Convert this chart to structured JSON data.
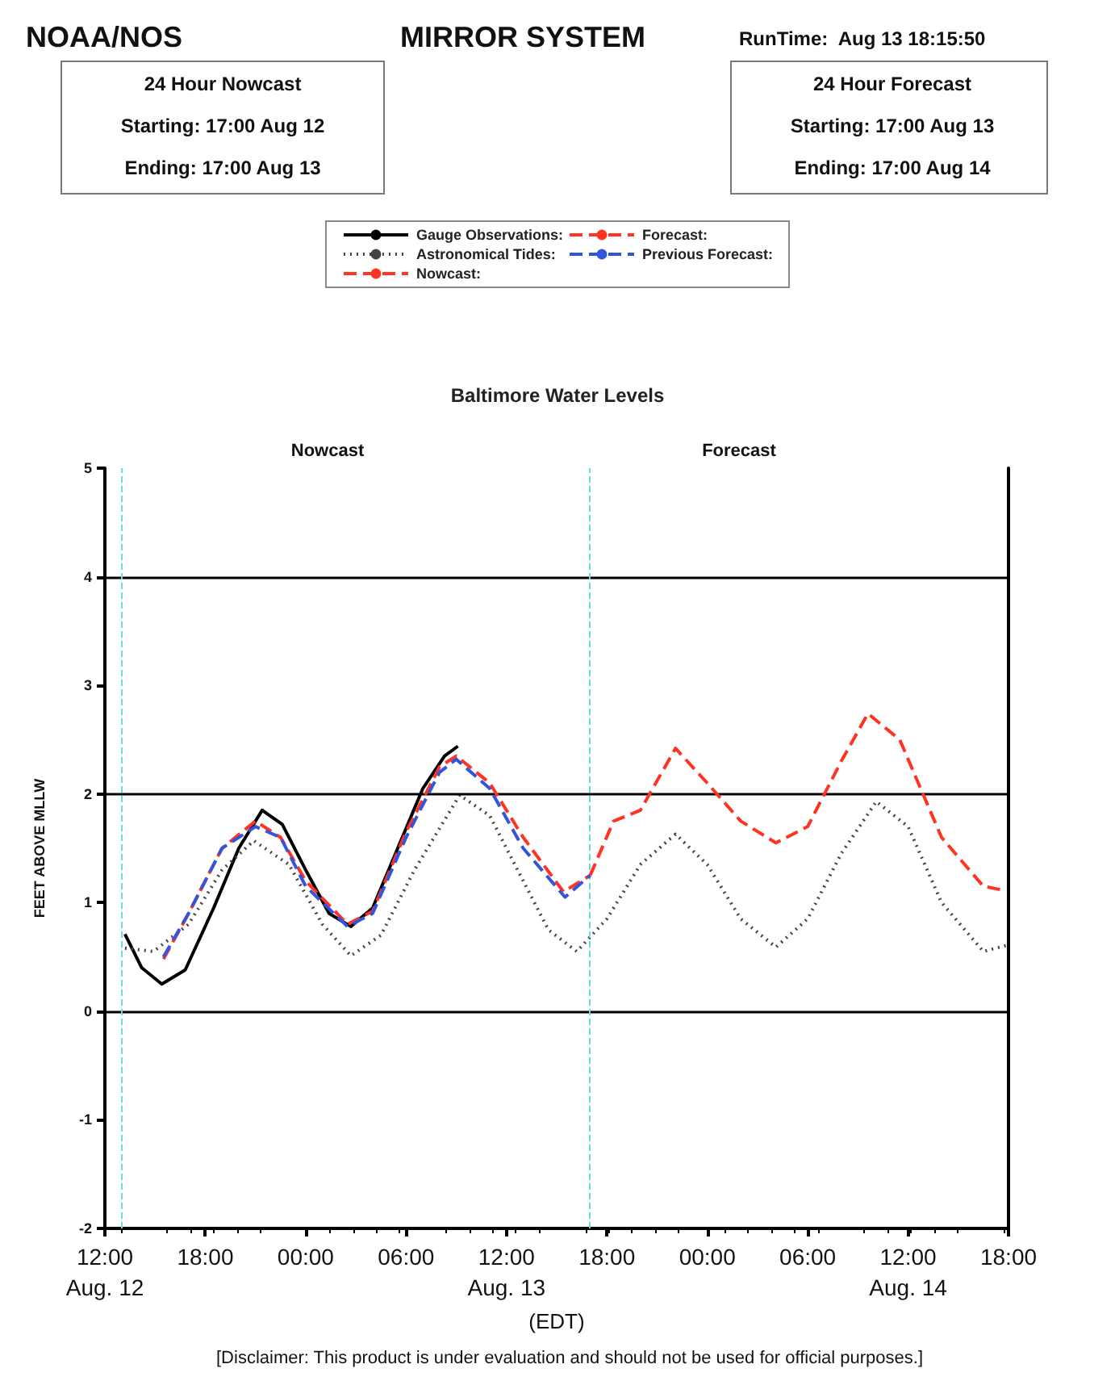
{
  "chart_data": {
    "type": "line",
    "title": "Baltimore Water Levels",
    "xlabel": "(EDT)",
    "ylabel": "FEET ABOVE MLLW",
    "annotations": [
      "NOAA/NOS",
      "MIRROR SYSTEM",
      "RunTime:  Aug 13 18:15:50",
      "24 Hour Nowcast",
      "Starting: 17:00 Aug 12",
      "Ending: 17:00 Aug 13",
      "24 Hour Forecast",
      "Starting: 17:00 Aug 13",
      "Ending: 17:00 Aug 14",
      "Nowcast",
      "Forecast",
      "[Disclaimer: This product is under evaluation and should not be used for official purposes.]"
    ],
    "xlim": [
      "--08-12T12:00",
      "--08-14T18:00"
    ],
    "ylim": [
      -2,
      5
    ],
    "xticks": [
      {
        "value": "--08-12T12:00",
        "label": "12:00\nAug. 12"
      },
      {
        "value": "--08-12T18:00",
        "label": "18:00"
      },
      {
        "value": "--08-13T00:00",
        "label": "00:00"
      },
      {
        "value": "--08-13T06:00",
        "label": "06:00"
      },
      {
        "value": "--08-13T12:00",
        "label": "12:00\nAug. 13"
      },
      {
        "value": "--08-13T18:00",
        "label": "18:00"
      },
      {
        "value": "--08-14T00:00",
        "label": "00:00"
      },
      {
        "value": "--08-14T06:00",
        "label": "06:00"
      },
      {
        "value": "--08-14T12:00",
        "label": "12:00\nAug. 14"
      },
      {
        "value": "--08-14T18:00",
        "label": "18:00"
      }
    ],
    "yticks": [
      -2,
      -1,
      0,
      1,
      2,
      3,
      4,
      5
    ],
    "grid": false,
    "legend": "top",
    "marker": "none",
    "ref_lines": [
      {
        "axis": "y",
        "value": 0,
        "color": "#000000",
        "line_style": "solid"
      },
      {
        "axis": "y",
        "value": 2,
        "color": "#000000",
        "line_style": "solid"
      },
      {
        "axis": "y",
        "value": 4,
        "color": "#000000",
        "line_style": "solid"
      },
      {
        "axis": "x",
        "value": "--08-12T13:00",
        "color": "#66dddd",
        "line_style": "dashed"
      },
      {
        "axis": "x",
        "value": "--08-13T17:00",
        "color": "#66dddd",
        "line_style": "dashed"
      }
    ],
    "series": [
      {
        "name": "Gauge Observations:",
        "color": "#000000",
        "line_style": "solid",
        "x": [
          "--08-12T13:12",
          "--08-12T14:12",
          "--08-12T15:24",
          "--08-12T16:48",
          "--08-12T18:30",
          "--08-12T20:00",
          "--08-12T21:24",
          "--08-12T22:36",
          "--08-13T00:00",
          "--08-13T01:24",
          "--08-13T02:42",
          "--08-13T04:00",
          "--08-13T05:30",
          "--08-13T07:00",
          "--08-13T08:18",
          "--08-13T09:06"
        ],
        "values": [
          0.71,
          0.4,
          0.25,
          0.38,
          0.95,
          1.5,
          1.85,
          1.72,
          1.3,
          0.9,
          0.78,
          0.95,
          1.5,
          2.05,
          2.35,
          2.44
        ]
      },
      {
        "name": "Astronomical Tides:",
        "color": "#444444",
        "line_style": "dotted",
        "x": [
          "--08-12T13:12",
          "--08-12T14:54",
          "--08-12T17:00",
          "--08-12T19:00",
          "--08-12T20:54",
          "--08-12T23:00",
          "--08-13T01:00",
          "--08-13T02:42",
          "--08-13T04:30",
          "--08-13T06:30",
          "--08-13T09:12",
          "--08-13T11:00",
          "--08-13T13:00",
          "--08-13T14:30",
          "--08-13T16:12",
          "--08-13T18:00",
          "--08-13T20:00",
          "--08-13T22:06",
          "--08-14T00:00",
          "--08-14T02:00",
          "--08-14T04:06",
          "--08-14T06:00",
          "--08-14T08:00",
          "--08-14T10:06",
          "--08-14T12:00",
          "--08-14T14:00",
          "--08-14T16:30",
          "--08-14T18:00"
        ],
        "values": [
          0.58,
          0.55,
          0.8,
          1.3,
          1.57,
          1.35,
          0.8,
          0.51,
          0.7,
          1.3,
          1.99,
          1.8,
          1.2,
          0.75,
          0.55,
          0.85,
          1.35,
          1.63,
          1.35,
          0.85,
          0.59,
          0.85,
          1.45,
          1.93,
          1.7,
          1.0,
          0.55,
          0.61
        ]
      },
      {
        "name": "Nowcast:",
        "color": "#ff3322",
        "line_style": "dashed",
        "x": [
          "--08-12T15:30",
          "--08-12T17:00",
          "--08-12T19:00",
          "--08-12T21:00",
          "--08-12T22:30",
          "--08-13T00:00",
          "--08-13T02:30",
          "--08-13T04:00",
          "--08-13T06:00",
          "--08-13T08:00",
          "--08-13T09:00",
          "--08-13T11:00",
          "--08-13T13:00",
          "--08-13T15:24",
          "--08-13T17:00"
        ],
        "values": [
          0.48,
          0.9,
          1.5,
          1.75,
          1.6,
          1.2,
          0.8,
          0.92,
          1.65,
          2.25,
          2.35,
          2.1,
          1.6,
          1.1,
          1.25
        ]
      },
      {
        "name": "Forecast:",
        "color": "#ff3322",
        "line_style": "dashed",
        "x": [
          "--08-13T17:00",
          "--08-13T18:24",
          "--08-13T20:00",
          "--08-13T22:06",
          "--08-14T00:00",
          "--08-14T02:00",
          "--08-14T04:06",
          "--08-14T06:00",
          "--08-14T08:00",
          "--08-14T09:36",
          "--08-14T11:30",
          "--08-14T14:00",
          "--08-14T16:30",
          "--08-14T17:30"
        ],
        "values": [
          1.25,
          1.75,
          1.85,
          2.42,
          2.1,
          1.75,
          1.55,
          1.7,
          2.3,
          2.74,
          2.5,
          1.6,
          1.15,
          1.12
        ]
      },
      {
        "name": "Previous Forecast:",
        "color": "#3355dd",
        "line_style": "dashed",
        "x": [
          "--08-12T15:30",
          "--08-12T17:00",
          "--08-12T19:00",
          "--08-12T21:00",
          "--08-12T22:30",
          "--08-13T00:00",
          "--08-13T02:30",
          "--08-13T04:00",
          "--08-13T06:00",
          "--08-13T08:00",
          "--08-13T09:00",
          "--08-13T11:00",
          "--08-13T13:00",
          "--08-13T15:30",
          "--08-13T17:00"
        ],
        "values": [
          0.5,
          0.9,
          1.5,
          1.7,
          1.6,
          1.15,
          0.78,
          0.9,
          1.6,
          2.2,
          2.32,
          2.05,
          1.5,
          1.05,
          1.25
        ]
      }
    ]
  }
}
